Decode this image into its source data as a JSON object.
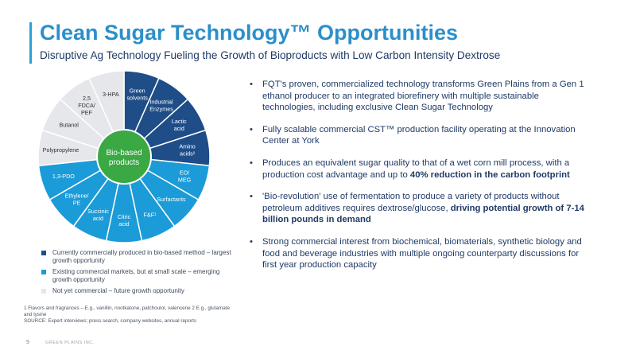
{
  "slide": {
    "title": "Clean Sugar Technology™ Opportunities",
    "subtitle": "Disruptive Ag Technology Fueling the Growth of Bioproducts with Low Carbon Intensity Dextrose",
    "page_number": "9",
    "company": "GREEN PLAINS INC."
  },
  "colors": {
    "accent": "#2ea0d6",
    "title": "#2b8fcb",
    "navy": "#1f3a66",
    "current": "#1e4d87",
    "existing": "#1b9bd7",
    "future": "#e6e7ea",
    "center": "#3aa843"
  },
  "wheel": {
    "center_label": [
      "Bio-based",
      "products"
    ],
    "segments": [
      {
        "label": [
          "Green",
          "solvents"
        ],
        "category": "current"
      },
      {
        "label": [
          "Industrial",
          "Enzymes"
        ],
        "category": "current"
      },
      {
        "label": [
          "Lactic",
          "acid"
        ],
        "category": "current"
      },
      {
        "label": [
          "Amino",
          "acids²"
        ],
        "category": "current"
      },
      {
        "label": [
          "EO/",
          "MEG"
        ],
        "category": "existing"
      },
      {
        "label": [
          "Surfactants"
        ],
        "category": "existing"
      },
      {
        "label": [
          "F&F¹"
        ],
        "category": "existing"
      },
      {
        "label": [
          "Citric",
          "acid"
        ],
        "category": "existing"
      },
      {
        "label": [
          "Succinic",
          "acid"
        ],
        "category": "existing"
      },
      {
        "label": [
          "Ethylene/",
          "PE"
        ],
        "category": "existing"
      },
      {
        "label": [
          "1,3-PDO"
        ],
        "category": "existing"
      },
      {
        "label": [
          "Polypropylene"
        ],
        "category": "future"
      },
      {
        "label": [
          "Butanol"
        ],
        "category": "future"
      },
      {
        "label": [
          "2,5",
          "FDCA/",
          "PEF"
        ],
        "category": "future"
      },
      {
        "label": [
          "3-HPA"
        ],
        "category": "future"
      }
    ]
  },
  "legend": [
    {
      "category": "current",
      "text": "Currently commercially produced in bio-based method – largest growth opportunity"
    },
    {
      "category": "existing",
      "text": "Existing commercial markets, but at small scale – emerging growth opportunity"
    },
    {
      "category": "future",
      "text": "Not yet commercial – future growth opportunity"
    }
  ],
  "footnotes": [
    "1 Flavors and fragrances – E.g., vanillin, nootkatone, patchoulol, valencene 2 E.g., glutamate and lysine",
    "SOURCE: Expert interviews; press search, company websites, annual reports"
  ],
  "bullets": [
    {
      "text": "FQT's proven, commercialized technology transforms Green Plains from a Gen 1 ethanol producer to an integrated biorefinery with multiple sustainable technologies, including exclusive Clean Sugar Technology",
      "emphasis": ""
    },
    {
      "text": "Fully scalable commercial CST™ production facility operating at the Innovation Center at York",
      "emphasis": ""
    },
    {
      "text": "Produces an equivalent sugar quality to that of a wet corn mill process, with a production cost advantage and up to ",
      "emphasis": "40% reduction in the carbon footprint"
    },
    {
      "text": "'Bio-revolution' use of fermentation to produce a variety of products without petroleum additives requires dextrose/glucose, ",
      "emphasis": "driving potential growth of 7-14 billion pounds in demand"
    },
    {
      "text": "Strong commercial interest from biochemical, biomaterials, synthetic biology and food and beverage industries with multiple ongoing counterparty discussions for first year production capacity",
      "emphasis": ""
    }
  ]
}
